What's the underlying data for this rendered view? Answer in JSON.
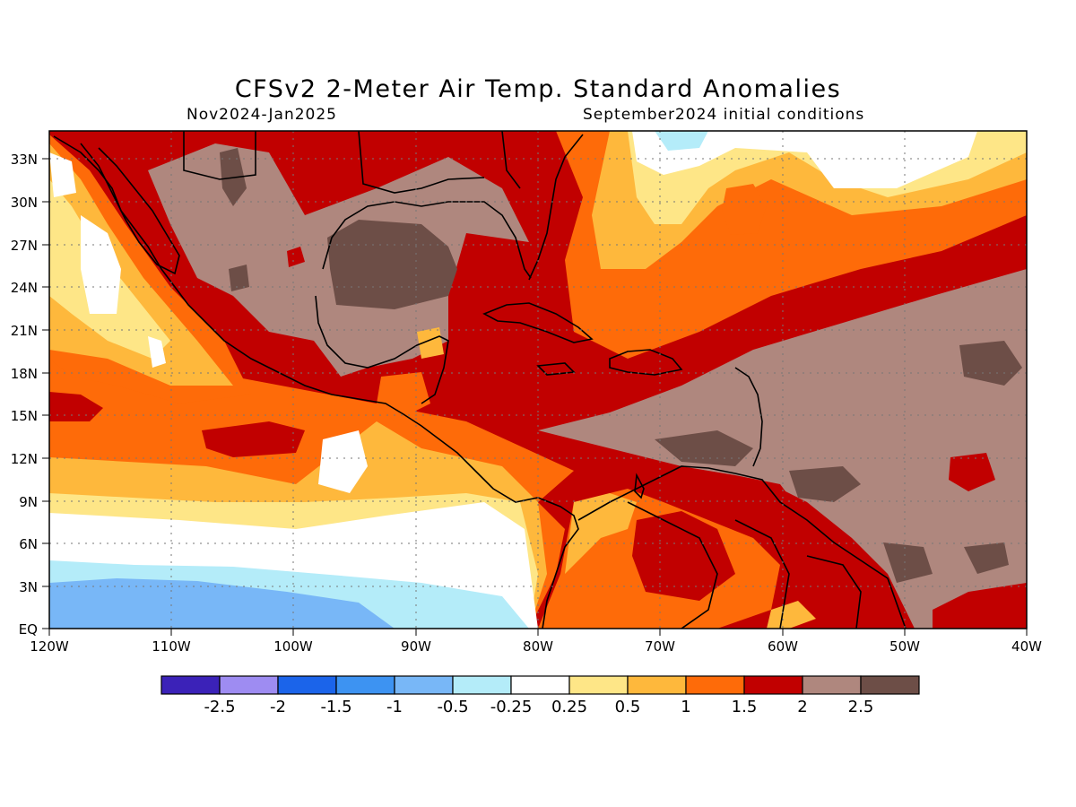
{
  "title": "CFSv2 2-Meter Air Temp. Standard Anomalies",
  "subtitle_left": "Nov2024-Jan2025",
  "subtitle_right": "September2024 initial conditions",
  "x_ticks": [
    "120W",
    "110W",
    "100W",
    "90W",
    "80W",
    "70W",
    "60W",
    "50W",
    "40W"
  ],
  "y_ticks": [
    "EQ",
    "3N",
    "6N",
    "9N",
    "12N",
    "15N",
    "18N",
    "21N",
    "24N",
    "27N",
    "30N",
    "33N"
  ],
  "colorbar": {
    "colors": [
      "#3b22b8",
      "#9e8cf2",
      "#1b64ea",
      "#3d93f2",
      "#78b7f7",
      "#b4ecf9",
      "#ffffff",
      "#fee687",
      "#feb83c",
      "#fe6b09",
      "#c10000",
      "#af877e",
      "#6d4e47"
    ],
    "labels": [
      "-2.5",
      "-2",
      "-1.5",
      "-1",
      "-0.5",
      "-0.25",
      "0.25",
      "0.5",
      "1",
      "1.5",
      "2",
      "2.5"
    ]
  }
}
